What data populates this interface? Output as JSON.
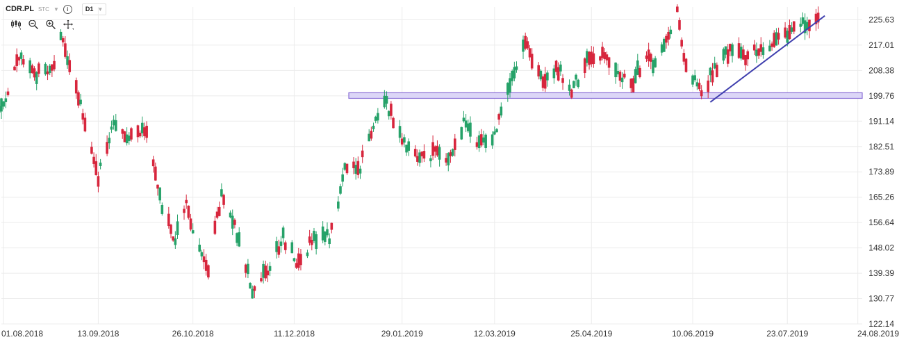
{
  "header": {
    "symbol": "CDR.PL",
    "market": "STC",
    "timeframe": "D1"
  },
  "toolbar_icons": [
    "candles-icon",
    "zoom-out-icon",
    "zoom-in-icon",
    "move-icon"
  ],
  "colors": {
    "up": "#26a269",
    "down": "#d7263d",
    "trendline": "#3f3fae",
    "zone_fill": "#dcd6f7",
    "zone_border": "#8a6fd6",
    "grid": "#ececec"
  },
  "chart_data": {
    "type": "candlestick",
    "ylim": [
      122.14,
      230.0
    ],
    "y_ticks": [
      "225.63",
      "217.01",
      "208.38",
      "199.76",
      "191.14",
      "182.51",
      "173.89",
      "165.26",
      "156.64",
      "148.02",
      "139.39",
      "130.77",
      "122.14"
    ],
    "x_ticks": [
      "01.08.2018",
      "13.09.2018",
      "26.10.2018",
      "11.12.2018",
      "29.01.2019",
      "12.03.2019",
      "25.04.2019",
      "10.06.2019",
      "23.07.2019",
      "24.08.2019"
    ],
    "support_zone": {
      "low": 198.9,
      "high": 200.8
    },
    "trendline": {
      "start": {
        "date": "18.06.2019",
        "price": 197.6
      },
      "end": {
        "date": "09.08.2019",
        "price": 227.0
      }
    },
    "anchors": [
      [
        "2018-08-01",
        195
      ],
      [
        "2018-08-08",
        213
      ],
      [
        "2018-08-16",
        207
      ],
      [
        "2018-08-23",
        209
      ],
      [
        "2018-08-27",
        219
      ],
      [
        "2018-09-03",
        203
      ],
      [
        "2018-09-10",
        182
      ],
      [
        "2018-09-13",
        172
      ],
      [
        "2018-09-20",
        192
      ],
      [
        "2018-09-27",
        186
      ],
      [
        "2018-10-04",
        189
      ],
      [
        "2018-10-11",
        165
      ],
      [
        "2018-10-18",
        150
      ],
      [
        "2018-10-23",
        165
      ],
      [
        "2018-10-26",
        152
      ],
      [
        "2018-11-02",
        140
      ],
      [
        "2018-11-08",
        166
      ],
      [
        "2018-11-15",
        153
      ],
      [
        "2018-11-22",
        134
      ],
      [
        "2018-11-29",
        140
      ],
      [
        "2018-12-06",
        152
      ],
      [
        "2018-12-13",
        142
      ],
      [
        "2018-12-20",
        152
      ],
      [
        "2018-12-27",
        152
      ],
      [
        "2019-01-03",
        174
      ],
      [
        "2019-01-10",
        176
      ],
      [
        "2019-01-17",
        192
      ],
      [
        "2019-01-22",
        197
      ],
      [
        "2019-01-29",
        186
      ],
      [
        "2019-02-05",
        178
      ],
      [
        "2019-02-12",
        180
      ],
      [
        "2019-02-19",
        179
      ],
      [
        "2019-02-26",
        190
      ],
      [
        "2019-03-05",
        183
      ],
      [
        "2019-03-12",
        186
      ],
      [
        "2019-03-19",
        203
      ],
      [
        "2019-03-26",
        218
      ],
      [
        "2019-04-02",
        205
      ],
      [
        "2019-04-09",
        210
      ],
      [
        "2019-04-16",
        202
      ],
      [
        "2019-04-23",
        211
      ],
      [
        "2019-04-30",
        213
      ],
      [
        "2019-05-07",
        208
      ],
      [
        "2019-05-14",
        205
      ],
      [
        "2019-05-21",
        214
      ],
      [
        "2019-05-24",
        210
      ],
      [
        "2019-06-03",
        228
      ],
      [
        "2019-06-06",
        213
      ],
      [
        "2019-06-10",
        206
      ],
      [
        "2019-06-14",
        201
      ],
      [
        "2019-06-20",
        209
      ],
      [
        "2019-06-27",
        215
      ],
      [
        "2019-07-04",
        213
      ],
      [
        "2019-07-11",
        216
      ],
      [
        "2019-07-18",
        218
      ],
      [
        "2019-07-25",
        222
      ],
      [
        "2019-07-30",
        225
      ],
      [
        "2019-08-06",
        225
      ]
    ]
  }
}
